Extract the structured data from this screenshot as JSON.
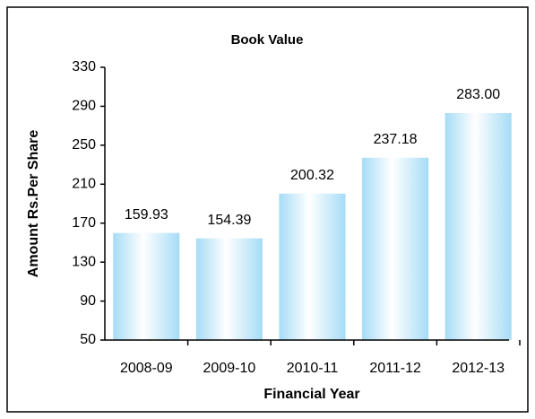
{
  "chart_data": {
    "type": "bar",
    "title": "Book Value",
    "x_label": "Financial Year",
    "y_label": "Amount Rs.Per Share",
    "categories": [
      "2008-09",
      "2009-10",
      "2010-11",
      "2011-12",
      "2012-13"
    ],
    "values": [
      159.93,
      154.39,
      200.32,
      237.18,
      283.0
    ],
    "value_labels": [
      "159.93",
      "154.39",
      "200.32",
      "237.18",
      "283.00"
    ],
    "color": "#a6dcf6",
    "ylim": [
      50,
      330
    ],
    "yticks": [
      50,
      90,
      130,
      170,
      210,
      250,
      290,
      330
    ],
    "grid": false
  }
}
